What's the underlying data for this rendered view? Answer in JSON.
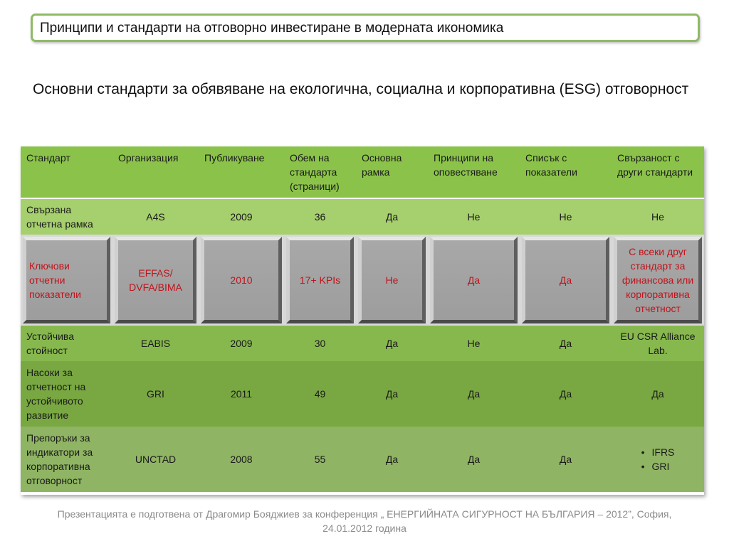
{
  "header": {
    "title": "Принципи и стандарти на отговорно инвестиране в модерната икономика"
  },
  "subtitle": "Основни стандарти за обявяване на екологична, социална и корпоративна (ESG) отговорност",
  "table": {
    "columns": [
      "Стандарт",
      "Организация",
      "Публикуване",
      "Обем  на стандарта (страници)",
      "Основна рамка",
      "Принципи на оповестяване",
      "Списък с показатели",
      "Свързаност с други стандарти"
    ],
    "rows": [
      {
        "standard": "Свързана отчетна рамка",
        "organization": "A4S",
        "published": "2009",
        "volume": "36",
        "framework": "Да",
        "principles": "Не",
        "indicators": "Не",
        "links": "Не"
      },
      {
        "standard": "Ключови отчетни показатели",
        "organization": "EFFAS/ DVFA/BIMA",
        "published": "2010",
        "volume": "17+ KPIs",
        "framework": "Не",
        "principles": "Да",
        "indicators": "Да",
        "links": "С всеки друг стандарт за финансова или корпоративна отчетност"
      },
      {
        "standard": "Устойчива стойност",
        "organization": "EABIS",
        "published": "2009",
        "volume": "30",
        "framework": "Да",
        "principles": "Не",
        "indicators": "Да",
        "links": "EU CSR Alliance Lab."
      },
      {
        "standard": "Насоки за отчетност на устойчивото развитие",
        "organization": "GRI",
        "published": "2011",
        "volume": "49",
        "framework": "Да",
        "principles": "Да",
        "indicators": "Да",
        "links": "Да"
      },
      {
        "standard": "Препоръки за индикатори за корпоративна отговорност",
        "organization": "UNCTAD",
        "published": "2008",
        "volume": "55",
        "framework": "Да",
        "principles": "Да",
        "indicators": "Да",
        "links_list": [
          "IFRS",
          "GRI"
        ]
      }
    ]
  },
  "footer": {
    "line1": "Презентацията е подготвена от Драгомир Бояджиев за конференция „ ЕНЕРГИЙНАТА СИГУРНОСТ НА БЪЛГАРИЯ – 2012”, София,",
    "line2": "24.01.2012 година"
  },
  "colors": {
    "title_border": "#8fba63",
    "header_row": "#8bc34a",
    "highlight_text": "#c0141c",
    "highlight_cell": "#a3a3a3"
  }
}
